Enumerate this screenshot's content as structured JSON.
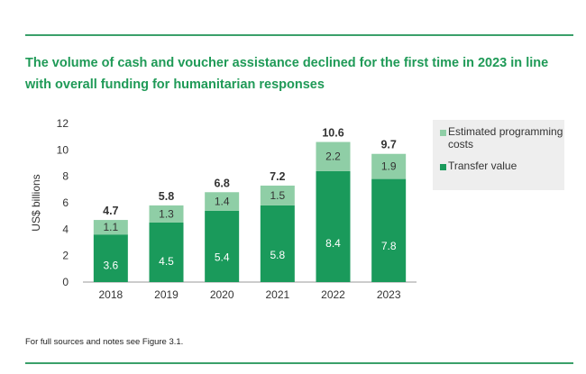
{
  "header": {
    "title": "The volume of cash and voucher assistance declined for the first time in 2023 in line with overall funding for humanitarian responses"
  },
  "footnote": "For full sources and notes see Figure 3.1.",
  "chart_data": {
    "type": "bar",
    "stacked": true,
    "categories": [
      "2018",
      "2019",
      "2020",
      "2021",
      "2022",
      "2023"
    ],
    "series": [
      {
        "name": "Transfer value",
        "values": [
          3.6,
          4.5,
          5.4,
          5.8,
          8.4,
          7.8
        ],
        "color": "#1a9a5b"
      },
      {
        "name": "Estimated programming costs",
        "values": [
          1.1,
          1.3,
          1.4,
          1.5,
          2.2,
          1.9
        ],
        "color": "#8fcea6"
      }
    ],
    "totals": [
      "4.7",
      "5.8",
      "6.8",
      "7.2",
      "10.6",
      "9.7"
    ],
    "segment_labels": [
      [
        "3.6",
        "4.5",
        "5.4",
        "5.8",
        "8.4",
        "7.8"
      ],
      [
        "1.1",
        "1.3",
        "1.4",
        "1.5",
        "2.2",
        "1.9"
      ]
    ],
    "yticks": [
      0,
      2,
      4,
      6,
      8,
      10,
      12
    ],
    "ytick_labels": [
      "0",
      "2",
      "4",
      "6",
      "8",
      "10",
      "12"
    ],
    "ylabel": "US$ billions",
    "xlabel": "",
    "ylim": [
      0,
      12
    ],
    "grid": false,
    "legend_position": "right",
    "legend": [
      "Estimated programming costs",
      "Transfer value"
    ]
  }
}
